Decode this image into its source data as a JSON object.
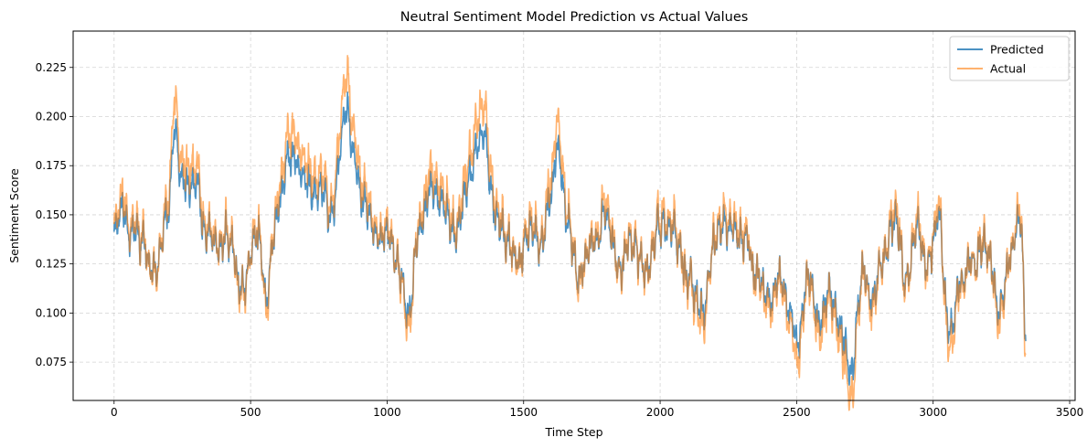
{
  "chart_data": {
    "type": "line",
    "title": "Neutral Sentiment Model Prediction vs Actual Values",
    "xlabel": "Time Step",
    "ylabel": "Sentiment Score",
    "xlim": [
      -150,
      3520
    ],
    "ylim": [
      0.0555,
      0.2435
    ],
    "xticks": [
      0,
      500,
      1000,
      1500,
      2000,
      2500,
      3000,
      3500
    ],
    "yticks": [
      0.075,
      0.1,
      0.125,
      0.15,
      0.175,
      0.2,
      0.225
    ],
    "ytick_labels": [
      "0.075",
      "0.100",
      "0.125",
      "0.150",
      "0.175",
      "0.200",
      "0.225"
    ],
    "grid": true,
    "legend_position": "top-right",
    "n_points": 3340,
    "anchors_x": [
      0,
      30,
      60,
      100,
      150,
      200,
      220,
      250,
      300,
      330,
      380,
      420,
      470,
      520,
      560,
      600,
      650,
      700,
      760,
      800,
      850,
      880,
      920,
      960,
      1000,
      1050,
      1080,
      1110,
      1160,
      1200,
      1250,
      1300,
      1350,
      1400,
      1440,
      1480,
      1520,
      1560,
      1600,
      1620,
      1660,
      1700,
      1750,
      1800,
      1850,
      1900,
      1950,
      2000,
      2050,
      2100,
      2160,
      2200,
      2260,
      2300,
      2360,
      2400,
      2440,
      2480,
      2500,
      2540,
      2580,
      2620,
      2660,
      2700,
      2740,
      2780,
      2820,
      2860,
      2900,
      2940,
      2980,
      3020,
      3060,
      3100,
      3150,
      3200,
      3240,
      3280,
      3320,
      3340
    ],
    "anchors_y": [
      0.138,
      0.15,
      0.142,
      0.134,
      0.122,
      0.15,
      0.19,
      0.168,
      0.17,
      0.14,
      0.135,
      0.14,
      0.112,
      0.142,
      0.108,
      0.155,
      0.18,
      0.168,
      0.16,
      0.15,
      0.2,
      0.175,
      0.15,
      0.14,
      0.138,
      0.122,
      0.102,
      0.14,
      0.16,
      0.155,
      0.14,
      0.17,
      0.19,
      0.15,
      0.14,
      0.128,
      0.14,
      0.132,
      0.165,
      0.185,
      0.15,
      0.12,
      0.135,
      0.15,
      0.13,
      0.135,
      0.12,
      0.15,
      0.135,
      0.12,
      0.1,
      0.145,
      0.15,
      0.14,
      0.12,
      0.11,
      0.12,
      0.1,
      0.082,
      0.12,
      0.092,
      0.115,
      0.088,
      0.068,
      0.12,
      0.11,
      0.13,
      0.15,
      0.12,
      0.145,
      0.125,
      0.15,
      0.09,
      0.115,
      0.13,
      0.135,
      0.1,
      0.13,
      0.15,
      0.09
    ],
    "series": [
      {
        "name": "Predicted",
        "color": "#1f77b4",
        "opacity": 0.8
      },
      {
        "name": "Actual",
        "color": "#ff7f0e",
        "opacity": 0.6
      }
    ]
  }
}
